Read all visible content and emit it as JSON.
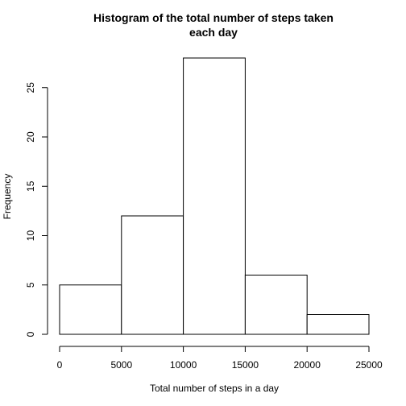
{
  "chart_data": {
    "type": "bar",
    "title_lines": [
      "Histogram of the total number of steps taken",
      "each day"
    ],
    "xlabel": "Total number of steps in a day",
    "ylabel": "Frequency",
    "bins": [
      {
        "from": 0,
        "to": 5000,
        "count": 5
      },
      {
        "from": 5000,
        "to": 10000,
        "count": 12
      },
      {
        "from": 10000,
        "to": 15000,
        "count": 28
      },
      {
        "from": 15000,
        "to": 20000,
        "count": 6
      },
      {
        "from": 20000,
        "to": 25000,
        "count": 2
      }
    ],
    "xlim": [
      0,
      25000
    ],
    "ylim": [
      0,
      28
    ],
    "x_ticks": [
      0,
      5000,
      10000,
      15000,
      20000,
      25000
    ],
    "y_ticks": [
      0,
      5,
      10,
      15,
      20,
      25
    ],
    "grid": false,
    "legend": "none",
    "bar_fill": "#ffffff",
    "bar_stroke": "#000000"
  }
}
